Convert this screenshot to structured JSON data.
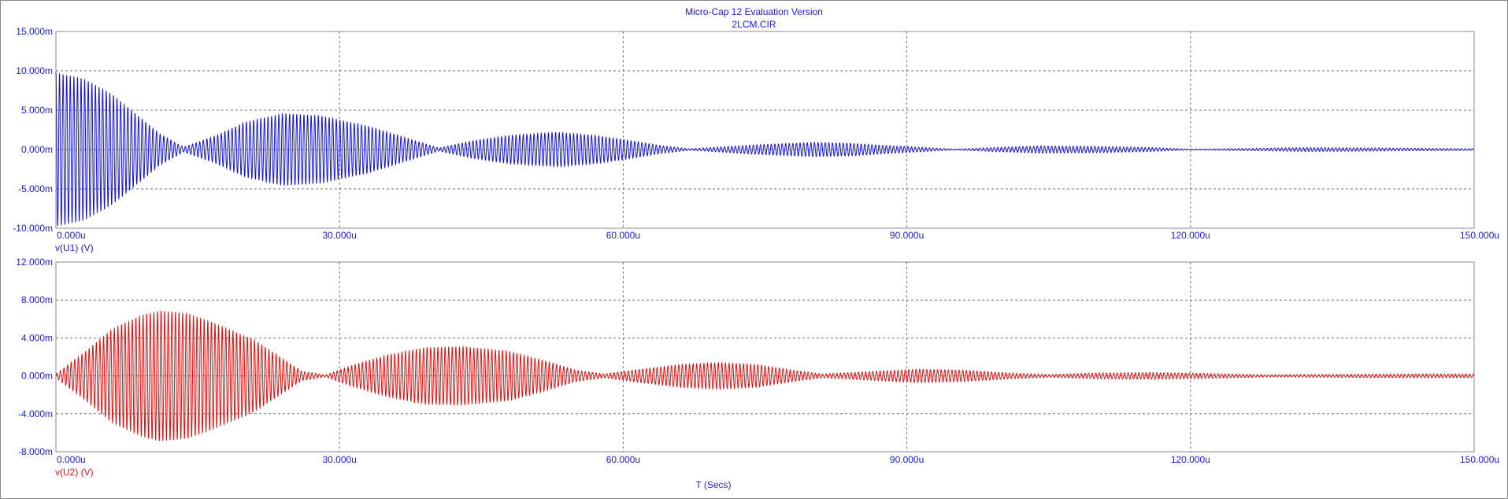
{
  "title": "Micro-Cap 12 Evaluation Version",
  "subtitle": "2LCM.CIR",
  "colors": {
    "axis_text": "#1a1ae0",
    "series1": "#1414d8",
    "series2": "#e01010",
    "grid": "#707070",
    "frame": "#8a8a8a"
  },
  "chart_data": [
    {
      "type": "line",
      "ylabel": "v(U1) (V)",
      "xlabel": "T (Secs)",
      "xlim": [
        0,
        150
      ],
      "x_unit": "u",
      "ylim": [
        -10,
        15
      ],
      "x_ticks": [
        "0.000u",
        "30.000u",
        "60.000u",
        "90.000u",
        "120.000u",
        "150.000u"
      ],
      "y_ticks": [
        "15.000m",
        "10.000m",
        "5.000m",
        "0.000m",
        "-5.000m",
        "-10.000m"
      ],
      "grid": true,
      "series": [
        {
          "color": "#1414d8",
          "model": "beating damped sine",
          "carrier_freq_mhz": 2.63,
          "envelope": [
            [
              0,
              9.8
            ],
            [
              3,
              9.0
            ],
            [
              6,
              7.0
            ],
            [
              9,
              4.0
            ],
            [
              11,
              2.0
            ],
            [
              13.5,
              0.3
            ],
            [
              17,
              1.8
            ],
            [
              20,
              3.5
            ],
            [
              24,
              4.6
            ],
            [
              28,
              4.3
            ],
            [
              33,
              3.0
            ],
            [
              37,
              1.5
            ],
            [
              40.5,
              0.2
            ],
            [
              44,
              1.1
            ],
            [
              48,
              1.8
            ],
            [
              53,
              2.2
            ],
            [
              57,
              1.8
            ],
            [
              61,
              1.1
            ],
            [
              64,
              0.5
            ],
            [
              67,
              0.1
            ],
            [
              70,
              0.3
            ],
            [
              74,
              0.6
            ],
            [
              80,
              0.9
            ],
            [
              84,
              0.8
            ],
            [
              88,
              0.5
            ],
            [
              92,
              0.25
            ],
            [
              95,
              0.05
            ],
            [
              99,
              0.25
            ],
            [
              104,
              0.45
            ],
            [
              110,
              0.4
            ],
            [
              116,
              0.25
            ],
            [
              120,
              0.05
            ],
            [
              124,
              0.1
            ],
            [
              132,
              0.25
            ],
            [
              140,
              0.2
            ],
            [
              150,
              0.1
            ]
          ]
        }
      ]
    },
    {
      "type": "line",
      "ylabel": "v(U2) (V)",
      "xlabel": "T (Secs)",
      "xlim": [
        0,
        150
      ],
      "x_unit": "u",
      "ylim": [
        -8,
        12
      ],
      "x_ticks": [
        "0.000u",
        "30.000u",
        "60.000u",
        "90.000u",
        "120.000u",
        "150.000u"
      ],
      "y_ticks": [
        "12.000m",
        "8.000m",
        "4.000m",
        "0.000m",
        "-4.000m",
        "-8.000m"
      ],
      "grid": true,
      "series": [
        {
          "color": "#e01010",
          "model": "beating damped sine",
          "carrier_freq_mhz": 2.63,
          "envelope": [
            [
              0,
              0.2
            ],
            [
              3,
              2.5
            ],
            [
              6,
              5.0
            ],
            [
              9,
              6.4
            ],
            [
              11,
              6.9
            ],
            [
              14,
              6.6
            ],
            [
              17,
              5.5
            ],
            [
              21,
              3.8
            ],
            [
              24,
              1.8
            ],
            [
              26,
              0.5
            ],
            [
              28.5,
              0.1
            ],
            [
              31,
              1.0
            ],
            [
              35,
              2.2
            ],
            [
              39,
              3.0
            ],
            [
              43,
              3.1
            ],
            [
              48,
              2.6
            ],
            [
              52,
              1.5
            ],
            [
              55,
              0.6
            ],
            [
              58,
              0.2
            ],
            [
              61,
              0.6
            ],
            [
              66,
              1.2
            ],
            [
              70,
              1.4
            ],
            [
              74,
              1.2
            ],
            [
              78,
              0.6
            ],
            [
              81,
              0.2
            ],
            [
              85,
              0.4
            ],
            [
              91,
              0.7
            ],
            [
              96,
              0.6
            ],
            [
              101,
              0.3
            ],
            [
              105,
              0.15
            ],
            [
              110,
              0.3
            ],
            [
              116,
              0.35
            ],
            [
              122,
              0.25
            ],
            [
              128,
              0.12
            ],
            [
              134,
              0.15
            ],
            [
              142,
              0.2
            ],
            [
              150,
              0.2
            ]
          ]
        }
      ]
    }
  ]
}
